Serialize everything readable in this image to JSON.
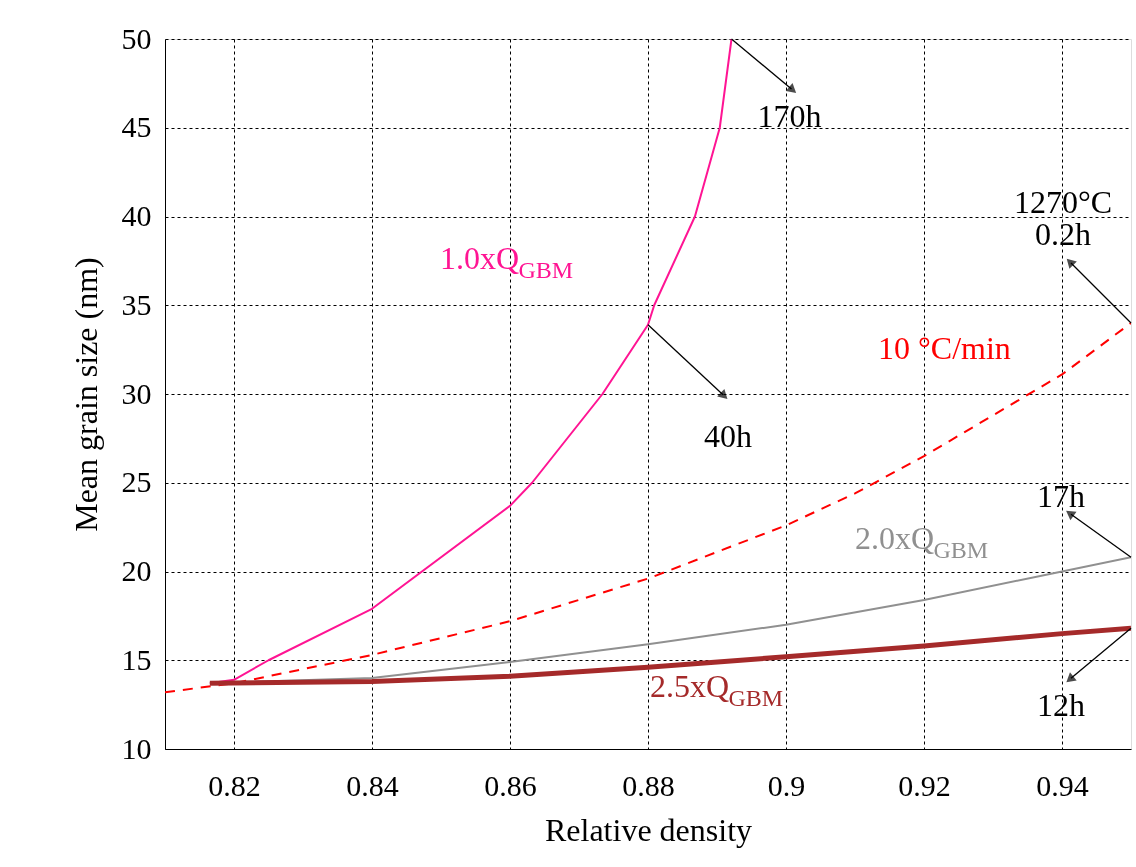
{
  "chart_data": {
    "type": "line",
    "xlabel": "Relative density",
    "ylabel": "Mean grain size (nm)",
    "xlim": [
      0.81,
      0.95
    ],
    "ylim": [
      10,
      50
    ],
    "xticks": [
      0.82,
      0.84,
      0.86,
      0.88,
      0.9,
      0.92,
      0.94
    ],
    "yticks": [
      10,
      15,
      20,
      25,
      30,
      35,
      40,
      45,
      50
    ],
    "grid": true,
    "series": [
      {
        "name": "1.0xQ$_{GBM}$",
        "color": "#ff1493",
        "line_style": "solid",
        "x": [
          0.8165,
          0.82,
          0.825,
          0.84,
          0.86,
          0.8632,
          0.8734,
          0.88,
          0.8809,
          0.8868,
          0.8904,
          0.8921
        ],
        "values": [
          13.7,
          13.9,
          15.0,
          17.9,
          23.7,
          25.0,
          30.0,
          33.9,
          35.0,
          40.0,
          45.0,
          50.0
        ]
      },
      {
        "name": "10 °C/min",
        "color": "#ff0000",
        "line_style": "dashed",
        "x": [
          0.81,
          0.82,
          0.84,
          0.86,
          0.88,
          0.89,
          0.9,
          0.91,
          0.92,
          0.93,
          0.94,
          0.95
        ],
        "values": [
          13.2,
          13.7,
          15.3,
          17.2,
          19.6,
          21.1,
          22.6,
          24.4,
          26.5,
          28.8,
          31.1,
          34.0
        ]
      },
      {
        "name": "2.0xQ$_{GBM}$",
        "color": "#909090",
        "line_style": "solid",
        "x": [
          0.8165,
          0.84,
          0.86,
          0.88,
          0.9,
          0.92,
          0.94,
          0.95
        ],
        "values": [
          13.7,
          14.0,
          14.9,
          15.9,
          17.0,
          18.4,
          20.0,
          20.8
        ]
      },
      {
        "name": "2.5xQ$_{GBM}$",
        "color": "#a52a2a",
        "line_style": "solid",
        "x": [
          0.8165,
          0.84,
          0.86,
          0.88,
          0.9,
          0.92,
          0.94,
          0.95
        ],
        "values": [
          13.7,
          13.8,
          14.1,
          14.6,
          15.2,
          15.8,
          16.5,
          16.8
        ]
      }
    ],
    "annotations": [
      {
        "text": "170h",
        "x": 0.8921,
        "y": 50.0
      },
      {
        "text": "40h",
        "x": 0.88,
        "y": 33.9
      },
      {
        "text": "1270°C\n0.2h",
        "x": 0.95,
        "y": 34.0
      },
      {
        "text": "17h",
        "x": 0.95,
        "y": 20.8
      },
      {
        "text": "12h",
        "x": 0.95,
        "y": 16.8
      }
    ]
  }
}
